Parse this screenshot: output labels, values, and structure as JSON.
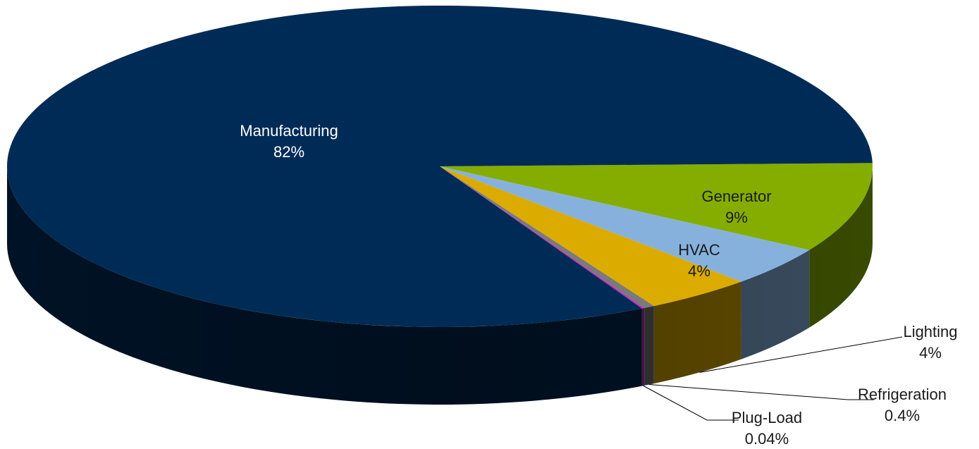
{
  "chart_data": {
    "type": "pie",
    "style": "3d",
    "title": "",
    "legend": "none",
    "slices": [
      {
        "label": "Manufacturing",
        "value": 82,
        "value_label": "82%",
        "color": "#002b57",
        "text_color": "#ffffff"
      },
      {
        "label": "Generator",
        "value": 9,
        "value_label": "9%",
        "color": "#84ad00",
        "text_color": "#1a1a1a"
      },
      {
        "label": "HVAC",
        "value": 4,
        "value_label": "4%",
        "color": "#86b1dd",
        "text_color": "#1a1a1a"
      },
      {
        "label": "Lighting",
        "value": 4,
        "value_label": "4%",
        "color": "#dbab00",
        "text_color": "#1a1a1a"
      },
      {
        "label": "Refrigeration",
        "value": 0.4,
        "value_label": "0.4%",
        "color": "#7a7a7a",
        "text_color": "#1a1a1a"
      },
      {
        "label": "Plug-Load",
        "value": 0.04,
        "value_label": "0.04%",
        "color": "#c22fc2",
        "text_color": "#1a1a1a"
      }
    ]
  }
}
